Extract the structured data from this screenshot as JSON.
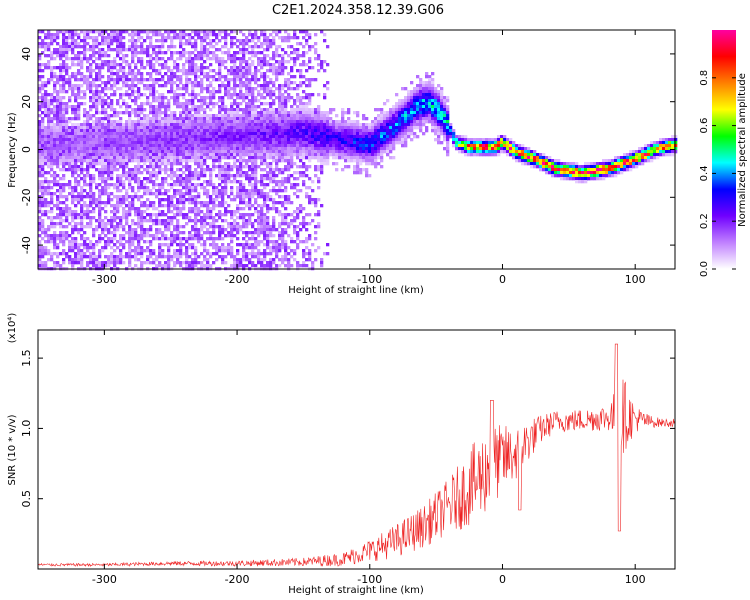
{
  "title": "C2E1.2024.358.12.39.G06",
  "chart_data": [
    {
      "type": "heatmap",
      "xlabel": "Height of straight line (km)",
      "ylabel": "Frequency (Hz)",
      "xlim": [
        -350,
        130
      ],
      "ylim": [
        -50,
        50
      ],
      "xticks": [
        -300,
        -200,
        -100,
        0,
        100
      ],
      "yticks": [
        -40,
        -20,
        0,
        20,
        40
      ],
      "colorbar": {
        "label": "Normalized spectral amplitude",
        "range": [
          0,
          1
        ],
        "ticks": [
          0.0,
          0.2,
          0.4,
          0.6,
          0.8
        ],
        "tick_labels": [
          "0.0",
          "0.2",
          "0.4",
          "0.6",
          "0.8"
        ],
        "colormap": [
          "#ffffff",
          "#c080ff",
          "#7000ff",
          "#0000ff",
          "#00ffff",
          "#00ff00",
          "#ffff00",
          "#ff8000",
          "#ff0000",
          "#ff00a0"
        ]
      },
      "ridge": {
        "x": [
          -350,
          -300,
          -250,
          -200,
          -150,
          -120,
          -100,
          -80,
          -65,
          -55,
          -45,
          -35,
          -25,
          -15,
          -5,
          0,
          10,
          20,
          40,
          60,
          80,
          100,
          115,
          130
        ],
        "y": [
          2,
          3,
          4,
          6,
          7,
          4,
          2,
          10,
          18,
          20,
          14,
          3,
          1,
          1,
          1,
          3,
          -1,
          -3,
          -8,
          -10,
          -8,
          -4,
          0,
          2
        ],
        "peak_amplitude": [
          0.15,
          0.15,
          0.18,
          0.2,
          0.25,
          0.3,
          0.35,
          0.38,
          0.42,
          0.45,
          0.45,
          0.55,
          0.85,
          0.9,
          0.9,
          0.85,
          0.9,
          0.92,
          0.95,
          0.97,
          0.95,
          0.9,
          0.85,
          0.8
        ]
      },
      "noise_region_x": [
        -350,
        -130
      ]
    },
    {
      "type": "line",
      "xlabel": "Height of straight line (km)",
      "ylabel": "SNR (10 * v/v)",
      "y_multiplier": "(x10⁴)",
      "xlim": [
        -350,
        130
      ],
      "ylim": [
        0,
        1.7
      ],
      "xticks": [
        -300,
        -200,
        -100,
        0,
        100
      ],
      "yticks": [
        0.5,
        1.0,
        1.5
      ],
      "ytick_labels": [
        "0.5",
        "1.0",
        "1.5"
      ],
      "color": "#ee2222",
      "series": [
        {
          "x": [
            -350,
            -300,
            -250,
            -200,
            -150,
            -120,
            -100,
            -80,
            -60,
            -40,
            -20,
            -10,
            0,
            10,
            20,
            30,
            40,
            60,
            80,
            90,
            100,
            110,
            120,
            130
          ],
          "y": [
            0.03,
            0.03,
            0.04,
            0.04,
            0.05,
            0.07,
            0.13,
            0.2,
            0.3,
            0.45,
            0.62,
            0.72,
            0.78,
            0.82,
            0.92,
            1.0,
            1.05,
            1.06,
            1.08,
            1.1,
            1.07,
            1.05,
            1.04,
            1.04
          ],
          "spread": [
            0.01,
            0.01,
            0.015,
            0.02,
            0.03,
            0.05,
            0.08,
            0.12,
            0.15,
            0.2,
            0.3,
            0.3,
            0.25,
            0.2,
            0.15,
            0.1,
            0.08,
            0.08,
            0.1,
            0.3,
            0.1,
            0.05,
            0.03,
            0.03
          ]
        }
      ],
      "annotations": [
        {
          "x": -8,
          "y": 1.2
        },
        {
          "x": 13,
          "y": 0.42
        },
        {
          "x": 86,
          "y": 1.6
        },
        {
          "x": 88,
          "y": 0.27
        }
      ]
    }
  ]
}
